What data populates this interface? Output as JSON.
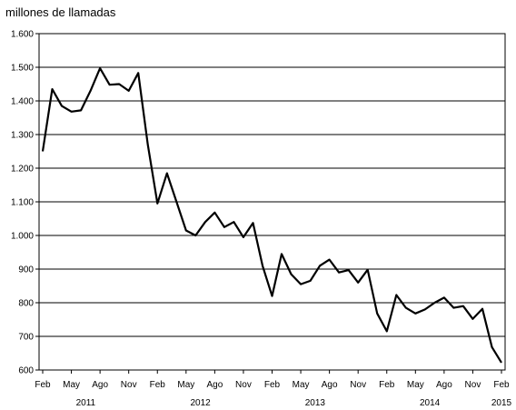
{
  "chart_data": {
    "type": "line",
    "title": "",
    "ylabel": "millones de llamadas",
    "xlabel": "",
    "ylim": [
      600,
      1600
    ],
    "yticks": [
      600,
      700,
      800,
      900,
      1000,
      1100,
      1200,
      1300,
      1400,
      1500,
      1600
    ],
    "ytick_labels": [
      "600",
      "700",
      "800",
      "900",
      "1.000",
      "1.100",
      "1.200",
      "1.300",
      "1.400",
      "1.500",
      "1.600"
    ],
    "month_ticks": [
      "Feb",
      "May",
      "Ago",
      "Nov",
      "Feb",
      "May",
      "Ago",
      "Nov",
      "Feb",
      "May",
      "Ago",
      "Nov",
      "Feb",
      "May",
      "Ago",
      "Nov",
      "Feb"
    ],
    "years": [
      "2011",
      "2012",
      "2013",
      "2014",
      "2015"
    ],
    "grid": "horizontal",
    "legend": "none",
    "line_color": "#000000",
    "x_start": "2011-02",
    "x": [
      "2011-02",
      "2011-03",
      "2011-04",
      "2011-05",
      "2011-06",
      "2011-07",
      "2011-08",
      "2011-09",
      "2011-10",
      "2011-11",
      "2011-12",
      "2012-01",
      "2012-02",
      "2012-03",
      "2012-04",
      "2012-05",
      "2012-06",
      "2012-07",
      "2012-08",
      "2012-09",
      "2012-10",
      "2012-11",
      "2012-12",
      "2013-01",
      "2013-02",
      "2013-03",
      "2013-04",
      "2013-05",
      "2013-06",
      "2013-07",
      "2013-08",
      "2013-09",
      "2013-10",
      "2013-11",
      "2013-12",
      "2014-01",
      "2014-02",
      "2014-03",
      "2014-04",
      "2014-05",
      "2014-06",
      "2014-07",
      "2014-08",
      "2014-09",
      "2014-10",
      "2014-11",
      "2014-12",
      "2015-01",
      "2015-02"
    ],
    "values": [
      1250,
      1435,
      1385,
      1368,
      1372,
      1430,
      1497,
      1448,
      1450,
      1430,
      1483,
      1270,
      1095,
      1185,
      1100,
      1015,
      1000,
      1040,
      1068,
      1025,
      1040,
      995,
      1037,
      910,
      820,
      945,
      885,
      855,
      865,
      910,
      928,
      890,
      897,
      860,
      898,
      768,
      715,
      823,
      785,
      768,
      780,
      800,
      815,
      785,
      790,
      752,
      782,
      668,
      622
    ]
  }
}
